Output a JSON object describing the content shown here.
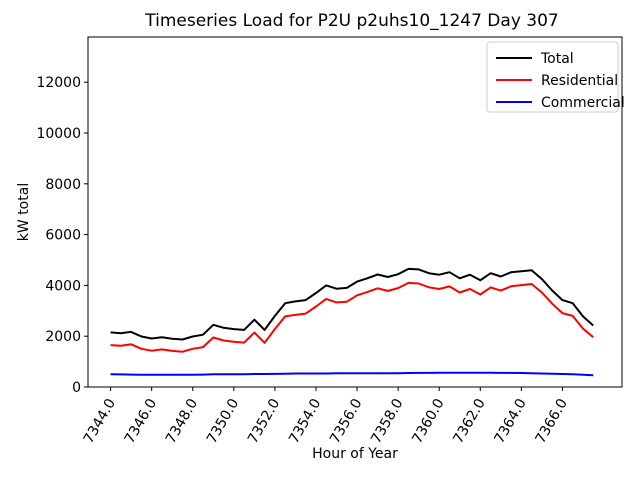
{
  "figure": {
    "background": "#ffffff",
    "frame_color": "#000000"
  },
  "chart_data": {
    "type": "line",
    "title": "Timeseries Load for P2U p2uhs10_1247  Day 307",
    "xlabel": "Hour of Year",
    "ylabel": "kW total",
    "grid": false,
    "legend_position": "upper right",
    "legend_border_color": "#cccccc",
    "xlim": [
      7342.9,
      7368.9
    ],
    "ylim": [
      0,
      13780
    ],
    "x_ticks": [
      {
        "value": 7344,
        "label": "7344.0"
      },
      {
        "value": 7346,
        "label": "7346.0"
      },
      {
        "value": 7348,
        "label": "7348.0"
      },
      {
        "value": 7350,
        "label": "7350.0"
      },
      {
        "value": 7352,
        "label": "7352.0"
      },
      {
        "value": 7354,
        "label": "7354.0"
      },
      {
        "value": 7356,
        "label": "7356.0"
      },
      {
        "value": 7358,
        "label": "7358.0"
      },
      {
        "value": 7360,
        "label": "7360.0"
      },
      {
        "value": 7362,
        "label": "7362.0"
      },
      {
        "value": 7364,
        "label": "7364.0"
      },
      {
        "value": 7366,
        "label": "7366.0"
      }
    ],
    "y_ticks": [
      {
        "value": 0,
        "label": "0"
      },
      {
        "value": 2000,
        "label": "2000"
      },
      {
        "value": 4000,
        "label": "4000"
      },
      {
        "value": 6000,
        "label": "6000"
      },
      {
        "value": 8000,
        "label": "8000"
      },
      {
        "value": 10000,
        "label": "10000"
      },
      {
        "value": 12000,
        "label": "12000"
      }
    ],
    "x": [
      7344.0,
      7344.5,
      7345.0,
      7345.5,
      7346.0,
      7346.5,
      7347.0,
      7347.5,
      7348.0,
      7348.5,
      7349.0,
      7349.5,
      7350.0,
      7350.5,
      7351.0,
      7351.5,
      7352.0,
      7352.5,
      7353.0,
      7353.5,
      7354.0,
      7354.5,
      7355.0,
      7355.5,
      7356.0,
      7356.5,
      7357.0,
      7357.5,
      7358.0,
      7358.5,
      7359.0,
      7359.5,
      7360.0,
      7360.5,
      7361.0,
      7361.5,
      7362.0,
      7362.5,
      7363.0,
      7363.5,
      7364.0,
      7364.5,
      7365.0,
      7365.5,
      7366.0,
      7366.5,
      7367.0,
      7367.5
    ],
    "series": [
      {
        "name": "Total",
        "color": "#000000",
        "values": [
          2150,
          2120,
          2170,
          1990,
          1910,
          1960,
          1900,
          1870,
          1990,
          2060,
          2450,
          2330,
          2280,
          2250,
          2650,
          2250,
          2800,
          3300,
          3370,
          3420,
          3700,
          4000,
          3870,
          3900,
          4150,
          4280,
          4430,
          4330,
          4440,
          4650,
          4630,
          4480,
          4420,
          4520,
          4280,
          4420,
          4200,
          4480,
          4350,
          4520,
          4560,
          4600,
          4250,
          3800,
          3420,
          3300,
          2780,
          2420
        ]
      },
      {
        "name": "Residential",
        "color": "#ff0000",
        "values": [
          1650,
          1625,
          1680,
          1505,
          1430,
          1480,
          1420,
          1390,
          1505,
          1570,
          1950,
          1830,
          1780,
          1750,
          2140,
          1740,
          2285,
          2780,
          2840,
          2890,
          3170,
          3470,
          3330,
          3360,
          3610,
          3735,
          3885,
          3785,
          3895,
          4100,
          4075,
          3925,
          3860,
          3960,
          3720,
          3860,
          3640,
          3920,
          3795,
          3965,
          4010,
          4055,
          3720,
          3280,
          2910,
          2800,
          2300,
          1960
        ]
      },
      {
        "name": "Commercial",
        "color": "#0000ff",
        "values": [
          500,
          495,
          490,
          485,
          480,
          480,
          480,
          480,
          485,
          490,
          500,
          500,
          500,
          500,
          510,
          510,
          515,
          520,
          530,
          530,
          530,
          530,
          540,
          540,
          540,
          545,
          545,
          545,
          545,
          550,
          555,
          555,
          560,
          560,
          560,
          560,
          560,
          560,
          555,
          555,
          550,
          545,
          530,
          520,
          510,
          500,
          480,
          460
        ]
      }
    ]
  }
}
